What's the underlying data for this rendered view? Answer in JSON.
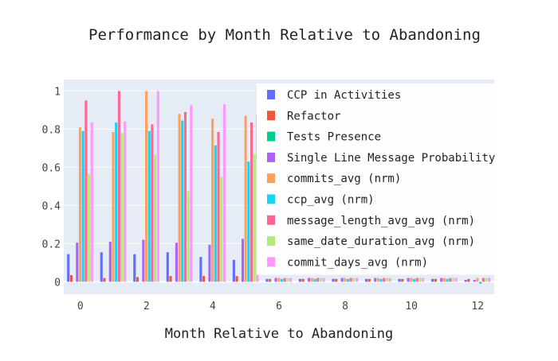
{
  "chart_data": {
    "type": "bar",
    "title": "Performance by Month Relative to Abandoning",
    "xlabel": "Month Relative to Abandoning",
    "ylabel": "",
    "x": [
      0,
      1,
      2,
      3,
      4,
      5,
      6,
      7,
      8,
      9,
      10,
      11,
      12
    ],
    "xlim": [
      -0.5,
      12.5
    ],
    "ylim": [
      -0.065,
      1.06
    ],
    "x_ticks": [
      0,
      2,
      4,
      6,
      8,
      10,
      12
    ],
    "y_ticks": [
      0,
      0.2,
      0.4,
      0.6,
      0.8,
      1
    ],
    "y_tick_labels": [
      "0",
      "0.2",
      "0.4",
      "0.6",
      "0.8",
      "1"
    ],
    "grid": true,
    "legend_position": "right",
    "plot_background": "#E5ECF6",
    "series": [
      {
        "name": "CCP in Activities",
        "color": "#636EFA",
        "values": [
          0.145,
          0.155,
          0.145,
          0.155,
          0.13,
          0.115,
          0.015,
          0.015,
          0.015,
          0.015,
          0.015,
          0.015,
          0.01
        ]
      },
      {
        "name": "Refactor",
        "color": "#EF553B",
        "values": [
          0.035,
          0.02,
          0.025,
          0.03,
          0.03,
          0.03,
          0.015,
          0.015,
          0.015,
          0.015,
          0.015,
          0.015,
          0.015
        ]
      },
      {
        "name": "Tests Presence",
        "color": "#00CC96",
        "values": [
          0.0,
          0.0,
          0.0,
          0.0,
          0.0,
          0.0,
          0.0,
          0.0,
          0.0,
          0.0,
          0.0,
          0.0,
          0.0
        ]
      },
      {
        "name": "Single Line Message Probability",
        "color": "#AB63FA",
        "values": [
          0.205,
          0.21,
          0.22,
          0.205,
          0.195,
          0.225,
          0.02,
          0.02,
          0.02,
          0.02,
          0.02,
          0.02,
          0.01
        ]
      },
      {
        "name": "commits_avg (nrm)",
        "color": "#FFA15A",
        "values": [
          0.81,
          0.785,
          1.0,
          0.88,
          0.855,
          0.87,
          0.02,
          0.02,
          0.02,
          0.02,
          0.02,
          0.02,
          0.02
        ]
      },
      {
        "name": "ccp_avg (nrm)",
        "color": "#19D3F3",
        "values": [
          0.79,
          0.835,
          0.79,
          0.845,
          0.715,
          0.63,
          0.015,
          0.015,
          0.015,
          0.015,
          0.015,
          0.015,
          -0.01
        ]
      },
      {
        "name": "message_length_avg_avg (nrm)",
        "color": "#FF6692",
        "values": [
          0.95,
          1.0,
          0.825,
          0.89,
          0.785,
          0.835,
          0.02,
          0.02,
          0.02,
          0.02,
          0.02,
          0.02,
          0.02
        ]
      },
      {
        "name": "same_date_duration_avg (nrm)",
        "color": "#B6E880",
        "values": [
          0.565,
          0.78,
          0.665,
          0.475,
          0.55,
          0.67,
          0.02,
          0.02,
          0.02,
          0.02,
          0.02,
          0.02,
          0.02
        ]
      },
      {
        "name": "commit_days_avg (nrm)",
        "color": "#FF97FF",
        "values": [
          0.835,
          0.84,
          1.0,
          0.925,
          0.93,
          0.88,
          0.02,
          0.02,
          0.02,
          0.02,
          0.02,
          0.02,
          0.02
        ]
      }
    ]
  }
}
